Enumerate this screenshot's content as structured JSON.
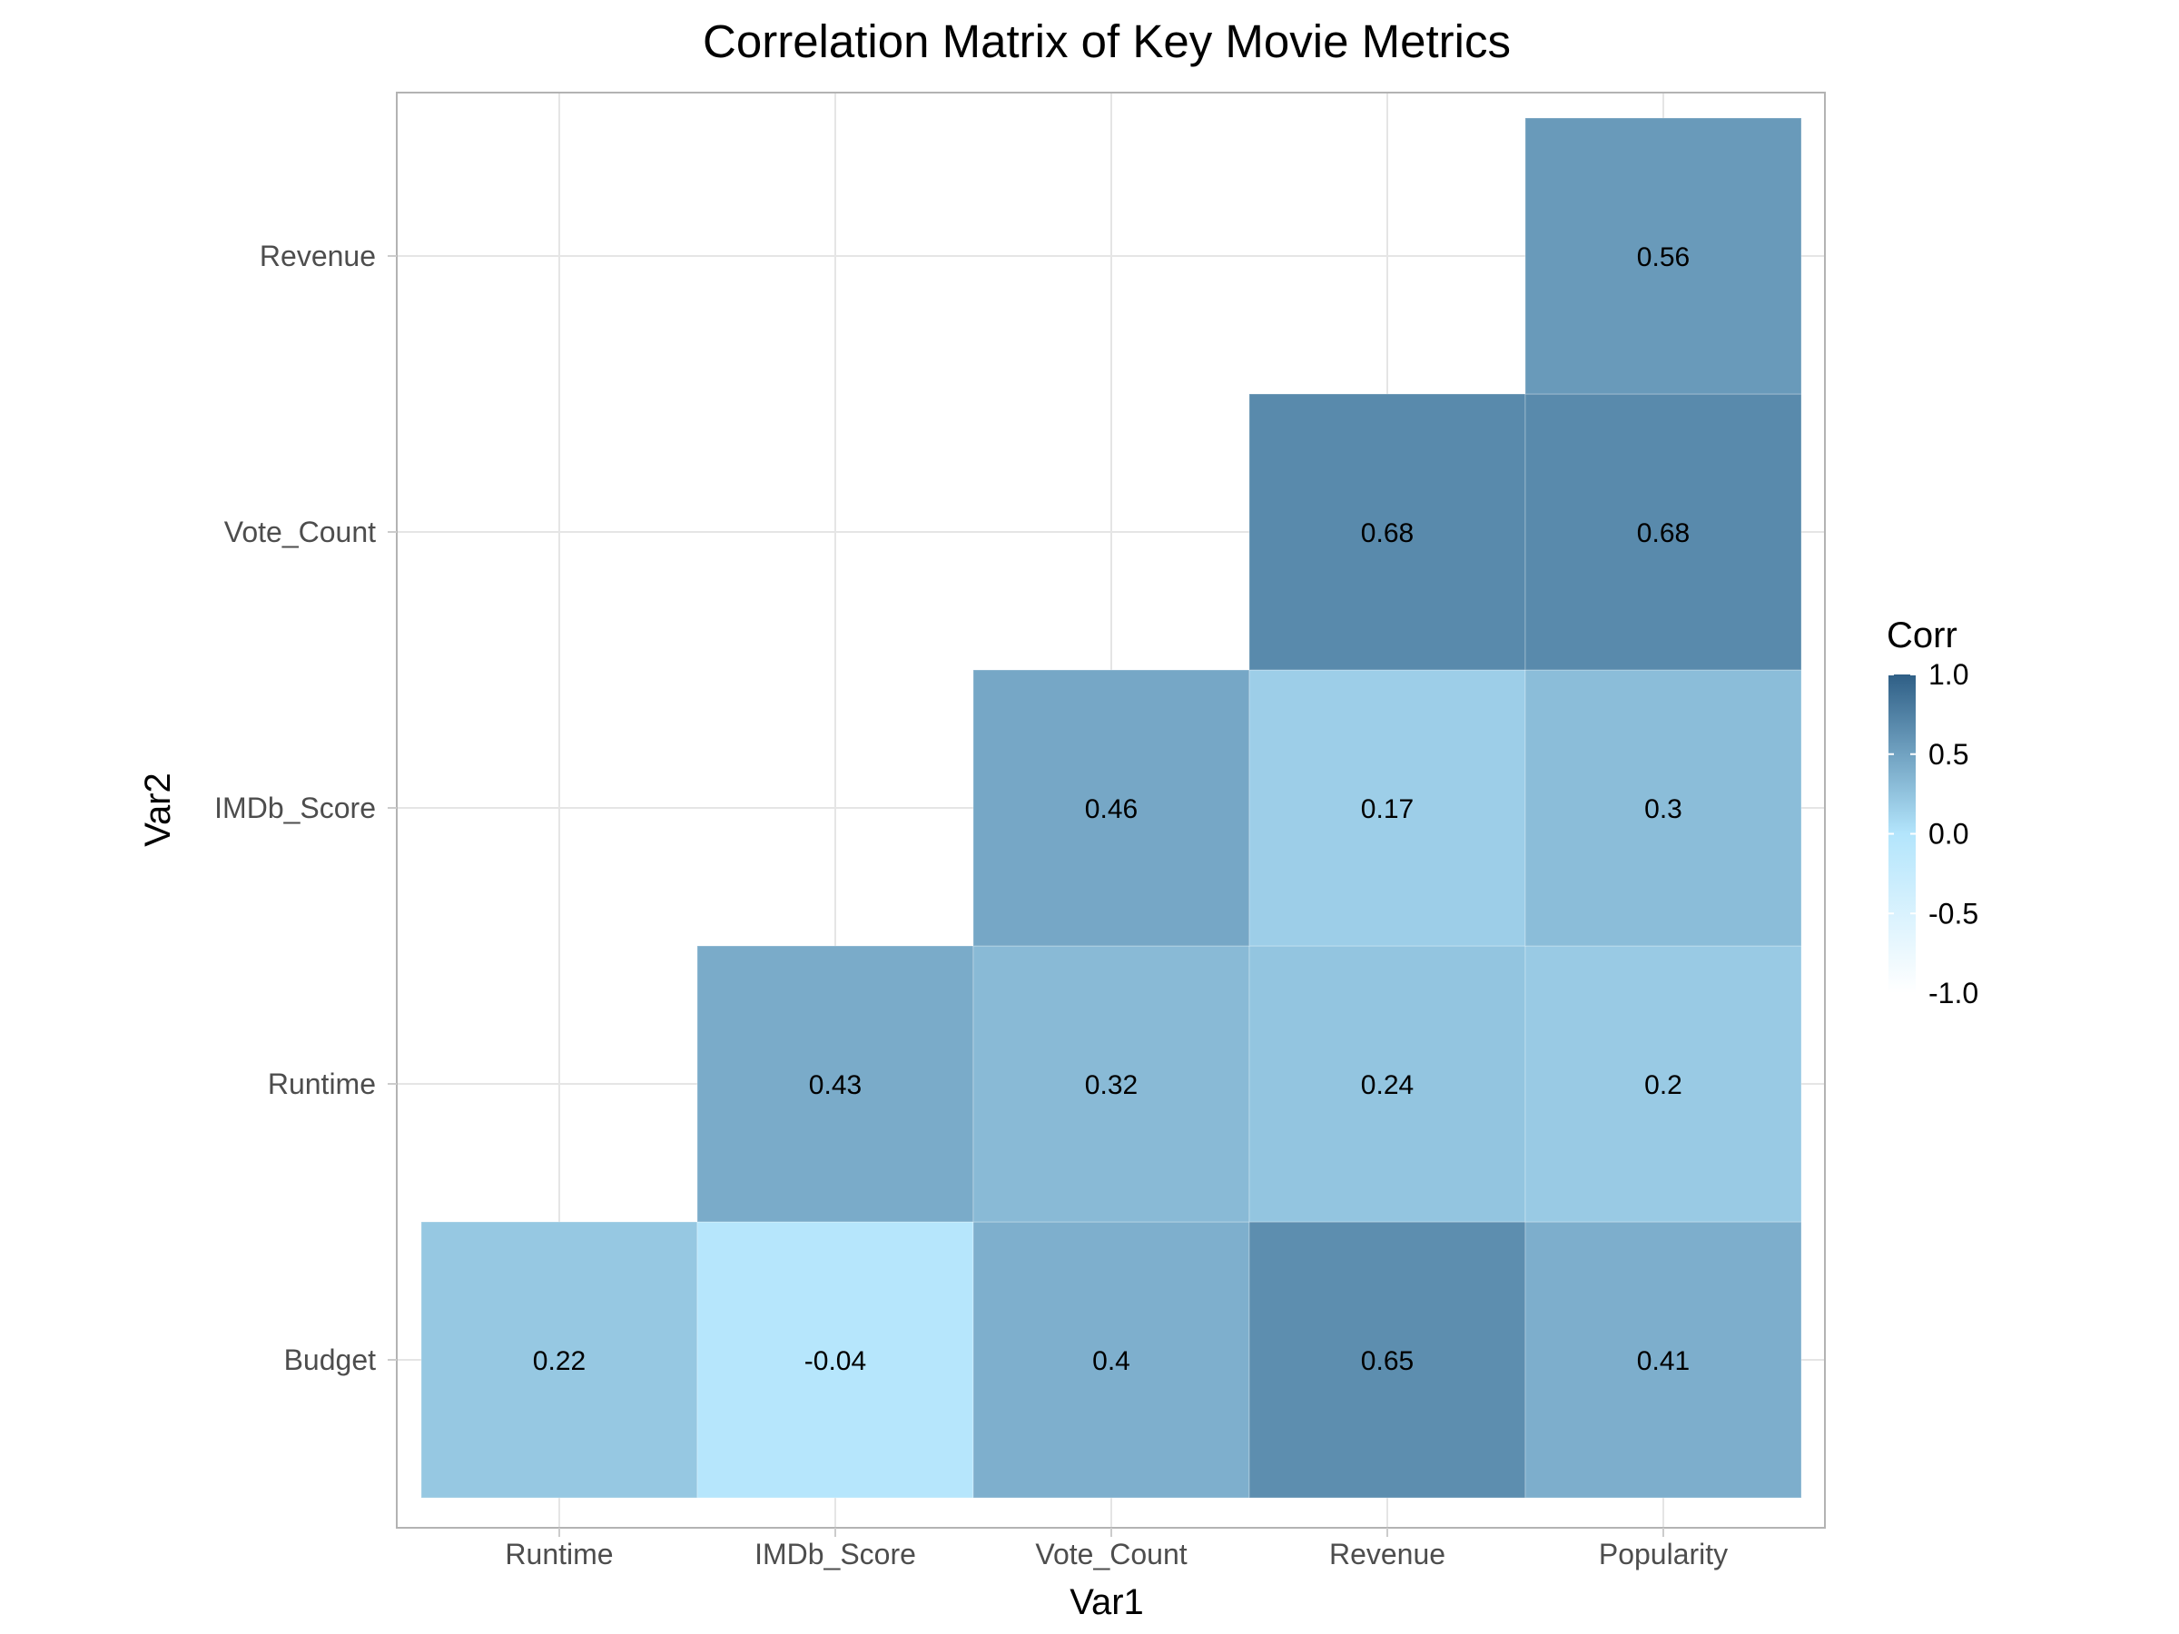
{
  "chart_data": {
    "type": "heatmap",
    "title": "Correlation Matrix of Key Movie Metrics",
    "xlabel": "Var1",
    "ylabel": "Var2",
    "x_categories": [
      "Runtime",
      "IMDb_Score",
      "Vote_Count",
      "Revenue",
      "Popularity"
    ],
    "y_categories": [
      "Budget",
      "Runtime",
      "IMDb_Score",
      "Vote_Count",
      "Revenue"
    ],
    "cells": [
      {
        "x": "Runtime",
        "y": "Budget",
        "value": 0.22,
        "label": "0.22"
      },
      {
        "x": "IMDb_Score",
        "y": "Budget",
        "value": -0.04,
        "label": "-0.04"
      },
      {
        "x": "Vote_Count",
        "y": "Budget",
        "value": 0.4,
        "label": "0.4"
      },
      {
        "x": "Revenue",
        "y": "Budget",
        "value": 0.65,
        "label": "0.65"
      },
      {
        "x": "Popularity",
        "y": "Budget",
        "value": 0.41,
        "label": "0.41"
      },
      {
        "x": "IMDb_Score",
        "y": "Runtime",
        "value": 0.43,
        "label": "0.43"
      },
      {
        "x": "Vote_Count",
        "y": "Runtime",
        "value": 0.32,
        "label": "0.32"
      },
      {
        "x": "Revenue",
        "y": "Runtime",
        "value": 0.24,
        "label": "0.24"
      },
      {
        "x": "Popularity",
        "y": "Runtime",
        "value": 0.2,
        "label": "0.2"
      },
      {
        "x": "Vote_Count",
        "y": "IMDb_Score",
        "value": 0.46,
        "label": "0.46"
      },
      {
        "x": "Revenue",
        "y": "IMDb_Score",
        "value": 0.17,
        "label": "0.17"
      },
      {
        "x": "Popularity",
        "y": "IMDb_Score",
        "value": 0.3,
        "label": "0.3"
      },
      {
        "x": "Revenue",
        "y": "Vote_Count",
        "value": 0.68,
        "label": "0.68"
      },
      {
        "x": "Popularity",
        "y": "Vote_Count",
        "value": 0.68,
        "label": "0.68"
      },
      {
        "x": "Popularity",
        "y": "Revenue",
        "value": 0.56,
        "label": "0.56"
      }
    ],
    "legend": {
      "title": "Corr",
      "placement": "right",
      "range": [
        -1,
        1
      ],
      "ticks": [
        1.0,
        0.5,
        0.0,
        -0.5,
        -1.0
      ],
      "tick_labels": [
        "1.0",
        "0.5",
        "0.0",
        "-0.5",
        "-1.0"
      ]
    },
    "color_scale": {
      "low": "#ffffff",
      "mid": "#b3e5fc",
      "high": "#2f5f86"
    },
    "grid": true,
    "panel_border": true
  }
}
